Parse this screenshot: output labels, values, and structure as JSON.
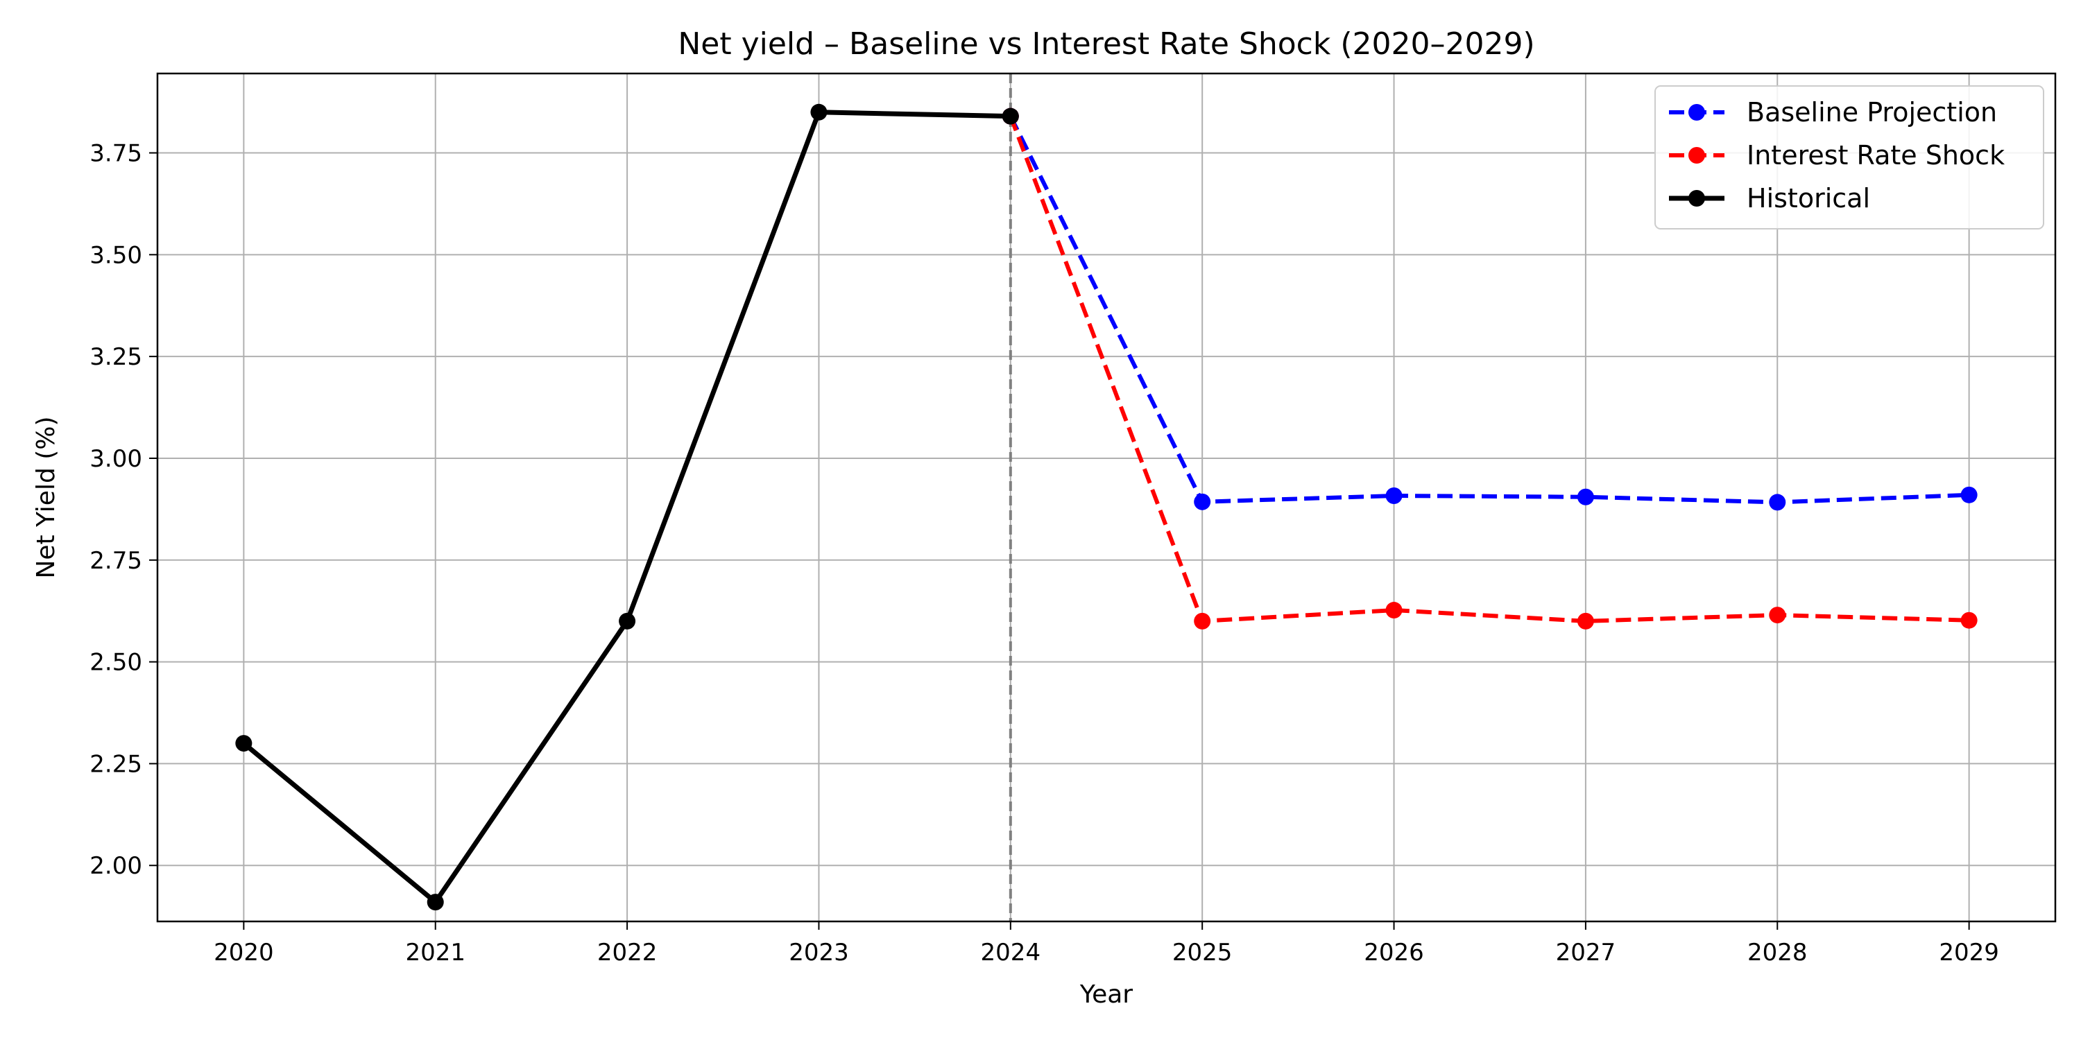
{
  "chart_data": {
    "type": "line",
    "title": "Net yield – Baseline vs Interest Rate Shock (2020–2029)",
    "xlabel": "Year",
    "ylabel": "Net Yield (%)",
    "xlim": [
      2019.55,
      2029.45
    ],
    "ylim": [
      1.8625,
      3.945
    ],
    "x_ticks": [
      2020,
      2021,
      2022,
      2023,
      2024,
      2025,
      2026,
      2027,
      2028,
      2029
    ],
    "x_tick_labels": [
      "2020",
      "2021",
      "2022",
      "2023",
      "2024",
      "2025",
      "2026",
      "2027",
      "2028",
      "2029"
    ],
    "y_ticks": [
      2.0,
      2.25,
      2.5,
      2.75,
      3.0,
      3.25,
      3.5,
      3.75
    ],
    "y_tick_labels": [
      "2.00",
      "2.25",
      "2.50",
      "2.75",
      "3.00",
      "3.25",
      "3.50",
      "3.75"
    ],
    "grid": true,
    "legend_position": "top-right",
    "vertical_marker": {
      "x": 2024,
      "color": "#808080",
      "style": "dashed"
    },
    "series": [
      {
        "name": "Baseline Projection",
        "color": "#0000ff",
        "style": "dashed",
        "x": [
          2024,
          2025,
          2026,
          2027,
          2028,
          2029
        ],
        "y": [
          3.84,
          2.893,
          2.908,
          2.905,
          2.892,
          2.91
        ]
      },
      {
        "name": "Interest Rate Shock",
        "color": "#ff0000",
        "style": "dashed",
        "x": [
          2024,
          2025,
          2026,
          2027,
          2028,
          2029
        ],
        "y": [
          3.84,
          2.6,
          2.627,
          2.6,
          2.615,
          2.602
        ]
      },
      {
        "name": "Historical",
        "color": "#000000",
        "style": "solid",
        "x": [
          2020,
          2021,
          2022,
          2023,
          2024
        ],
        "y": [
          2.3,
          1.91,
          2.6,
          3.85,
          3.84
        ]
      }
    ]
  }
}
